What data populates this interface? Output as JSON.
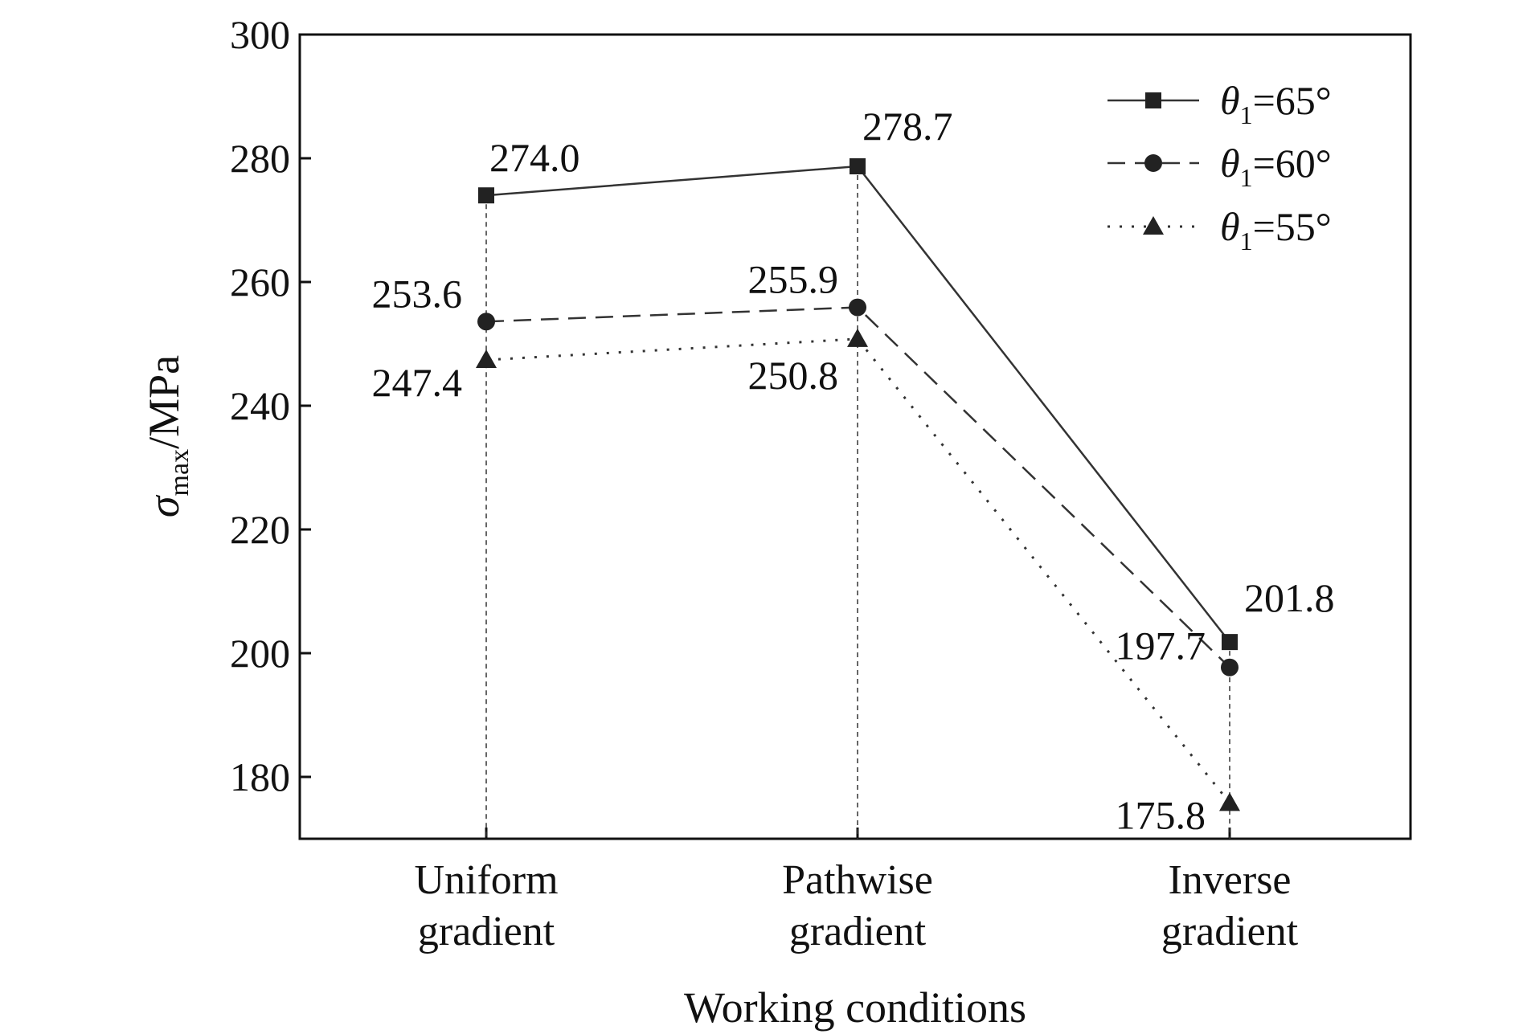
{
  "chart_data": {
    "type": "line",
    "title": "",
    "xlabel": "Working conditions",
    "ylabel": {
      "symbol": "σ",
      "subscript": "max",
      "unit": "/MPa"
    },
    "ylim": [
      170,
      300
    ],
    "yticks": [
      180,
      200,
      220,
      240,
      260,
      280,
      300
    ],
    "categories": [
      [
        "Uniform",
        "gradient"
      ],
      [
        "Pathwise",
        "gradient"
      ],
      [
        "Inverse",
        "gradient"
      ]
    ],
    "legend_position": "top-right",
    "grid": false,
    "series": [
      {
        "name": {
          "symbol": "θ",
          "subscript": "1",
          "value": "=65°"
        },
        "marker": "square",
        "line_style": "solid",
        "values": [
          274.0,
          278.7,
          201.8
        ],
        "labels": [
          "274.0",
          "278.7",
          "201.8"
        ]
      },
      {
        "name": {
          "symbol": "θ",
          "subscript": "1",
          "value": "=60°"
        },
        "marker": "circle",
        "line_style": "dashed",
        "values": [
          253.6,
          255.9,
          197.7
        ],
        "labels": [
          "253.6",
          "255.9",
          "197.7"
        ]
      },
      {
        "name": {
          "symbol": "θ",
          "subscript": "1",
          "value": "=55°"
        },
        "marker": "triangle",
        "line_style": "dotted",
        "values": [
          247.4,
          250.8,
          175.8
        ],
        "labels": [
          "247.4",
          "250.8",
          "175.8"
        ]
      }
    ],
    "colors": {
      "line": "#333333",
      "marker": "#222222"
    }
  }
}
